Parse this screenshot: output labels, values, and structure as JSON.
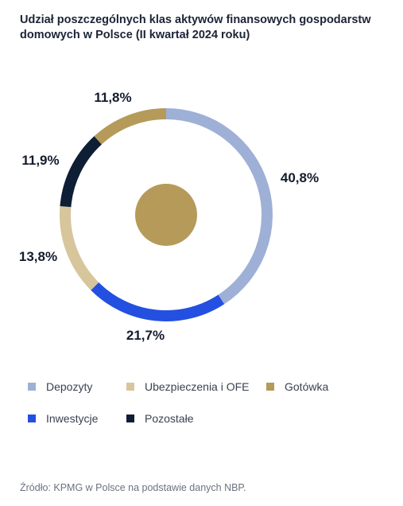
{
  "title": {
    "line1": "Udział poszczególnych klas aktywów finansowych gospodarstw",
    "line2": "domowych w Polsce (II kwartał 2024 roku)"
  },
  "chart_data": {
    "type": "pie",
    "variant": "donut",
    "title": "Udział poszczególnych klas aktywów finansowych gospodarstw domowych w Polsce (II kwartał 2024 roku)",
    "categories": [
      "Depozyty",
      "Inwestycje",
      "Ubezpieczenia i OFE",
      "Pozostałe",
      "Gotówka"
    ],
    "values": [
      40.8,
      21.7,
      13.8,
      11.9,
      11.8
    ],
    "labels": [
      "40,8%",
      "21,7%",
      "13,8%",
      "11,9%",
      "11,8%"
    ],
    "colors": [
      "#9eb0d6",
      "#2350e0",
      "#d7c59c",
      "#0e1e35",
      "#b59a5a"
    ],
    "center_dot_color": "#b59a5a",
    "legend": {
      "placement": "bottom",
      "items": [
        {
          "label": "Depozyty",
          "color": "#9eb0d6"
        },
        {
          "label": "Ubezpieczenia i OFE",
          "color": "#d7c59c"
        },
        {
          "label": "Gotówka",
          "color": "#b59a5a"
        },
        {
          "label": "Inwestycje",
          "color": "#2350e0"
        },
        {
          "label": "Pozostałe",
          "color": "#0e1e35"
        }
      ]
    }
  },
  "source": "Źródło: KPMG w Polsce na podstawie danych NBP."
}
